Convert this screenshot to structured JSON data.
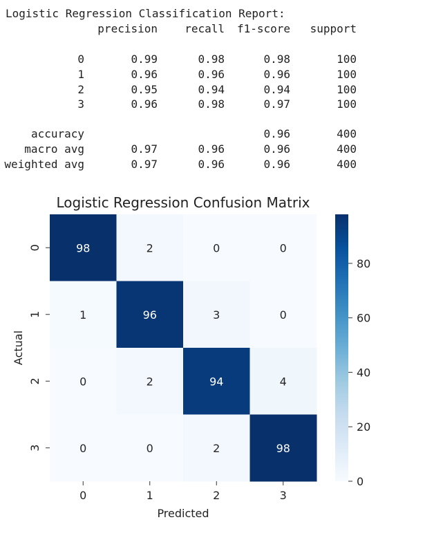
{
  "report": {
    "title": "Logistic Regression Classification Report:",
    "columns": [
      "precision",
      "recall",
      "f1-score",
      "support"
    ],
    "class_rows": [
      {
        "label": "0",
        "precision": "0.99",
        "recall": "0.98",
        "f1": "0.98",
        "support": "100"
      },
      {
        "label": "1",
        "precision": "0.96",
        "recall": "0.96",
        "f1": "0.96",
        "support": "100"
      },
      {
        "label": "2",
        "precision": "0.95",
        "recall": "0.94",
        "f1": "0.94",
        "support": "100"
      },
      {
        "label": "3",
        "precision": "0.96",
        "recall": "0.98",
        "f1": "0.97",
        "support": "100"
      }
    ],
    "summary_rows": [
      {
        "label": "accuracy",
        "precision": "",
        "recall": "",
        "f1": "0.96",
        "support": "400"
      },
      {
        "label": "macro avg",
        "precision": "0.97",
        "recall": "0.96",
        "f1": "0.96",
        "support": "400"
      },
      {
        "label": "weighted avg",
        "precision": "0.97",
        "recall": "0.96",
        "f1": "0.96",
        "support": "400"
      }
    ]
  },
  "chart_data": {
    "type": "heatmap",
    "title": "Logistic Regression Confusion Matrix",
    "xlabel": "Predicted",
    "ylabel": "Actual",
    "x_categories": [
      "0",
      "1",
      "2",
      "3"
    ],
    "y_categories": [
      "0",
      "1",
      "2",
      "3"
    ],
    "values": [
      [
        98,
        2,
        0,
        0
      ],
      [
        1,
        96,
        3,
        0
      ],
      [
        0,
        2,
        94,
        4
      ],
      [
        0,
        0,
        2,
        98
      ]
    ],
    "colormap": "Blues",
    "colorbar": {
      "min": 0,
      "max": 98,
      "ticks": [
        0,
        20,
        40,
        60,
        80
      ]
    },
    "annotations": true
  }
}
